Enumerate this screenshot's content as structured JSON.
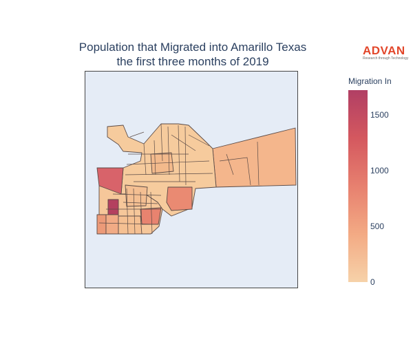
{
  "title": {
    "line1": "Population that Migrated into Amarillo Texas",
    "line2": "the first three months of 2019"
  },
  "logo": {
    "word": "ADVAN",
    "tagline": "Research through Technology"
  },
  "colorbar": {
    "title": "Migration In",
    "min": 0,
    "max": 1720,
    "ticks": [
      {
        "value": 0,
        "label": "0"
      },
      {
        "value": 500,
        "label": "500"
      },
      {
        "value": 1000,
        "label": "1000"
      },
      {
        "value": 1500,
        "label": "1500"
      }
    ],
    "colors": [
      "#f6d2a9",
      "#f3aa84",
      "#e7806f",
      "#d4585f",
      "#b13f64"
    ]
  },
  "colors": {
    "border": "#5a4a46",
    "background": "#e5ecf6",
    "text": "#2a3f5f",
    "brand": "#e2462a"
  }
}
